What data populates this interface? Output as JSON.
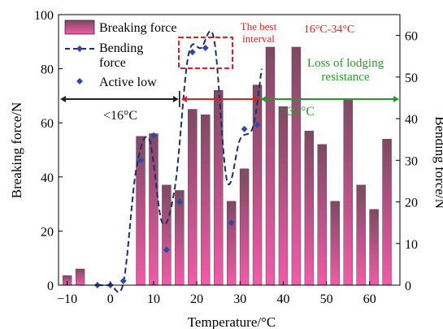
{
  "chart_data": {
    "type": "bar",
    "title": "",
    "xlabel": "Temperature/°C",
    "ylabel_left": "Breaking force/N",
    "ylabel_right": "Bending force/N",
    "xlim": [
      -12,
      67
    ],
    "ylim_left": [
      0,
      100
    ],
    "ylim_right": [
      0,
      65
    ],
    "xticks": [
      -10,
      0,
      10,
      20,
      30,
      40,
      50,
      60
    ],
    "yticks_left": [
      0,
      20,
      40,
      60,
      80,
      100
    ],
    "yticks_right": [
      0,
      10,
      20,
      30,
      40,
      50,
      60
    ],
    "grid": false,
    "legend_position": "top-left",
    "legend": {
      "bar": "Breaking force",
      "line": "Bending force",
      "scatter": "Active low"
    },
    "bars": {
      "name": "Breaking force",
      "axis": "left",
      "x": [
        -10,
        -7,
        7,
        10,
        13,
        16,
        19,
        22,
        25,
        28,
        31,
        34,
        37,
        40,
        43,
        46,
        49,
        52,
        55,
        58,
        61,
        64
      ],
      "values": [
        3.5,
        6,
        55,
        56,
        37,
        35,
        65,
        63,
        72,
        31,
        43,
        74,
        88,
        66,
        88,
        57,
        52,
        31,
        69,
        37,
        28,
        54
      ]
    },
    "line": {
      "name": "Bending force",
      "axis": "right",
      "x": [
        -3,
        0,
        3,
        6,
        9,
        12,
        15,
        18,
        21,
        24,
        27,
        30,
        33,
        35
      ],
      "values": [
        0,
        0,
        0.5,
        28,
        35,
        15,
        24,
        55,
        57,
        59,
        25,
        35,
        38,
        52
      ]
    },
    "scatter": {
      "name": "Active low",
      "axis": "right",
      "x": [
        -3,
        0,
        3,
        7,
        10,
        13,
        16,
        19,
        22,
        28,
        31,
        34
      ],
      "values": [
        0,
        0,
        1,
        30,
        36,
        8.5,
        20,
        56,
        57,
        15,
        37.5,
        38.5
      ]
    },
    "annotations": {
      "best_interval": "The best\ninterval",
      "range_label": "16°C-34°C",
      "loss_label": "Loss of lodging\nresistance",
      "below_label": "<16°C",
      "above_label": ">34°C"
    },
    "colors": {
      "bar_top": "#7d4a62",
      "bar_bottom": "#f25aa8",
      "line": "#1e2f6e",
      "marker": "#2f4aa6",
      "red": "#e02020",
      "green": "#2a9a2a",
      "black_arrow": "#222222"
    }
  }
}
